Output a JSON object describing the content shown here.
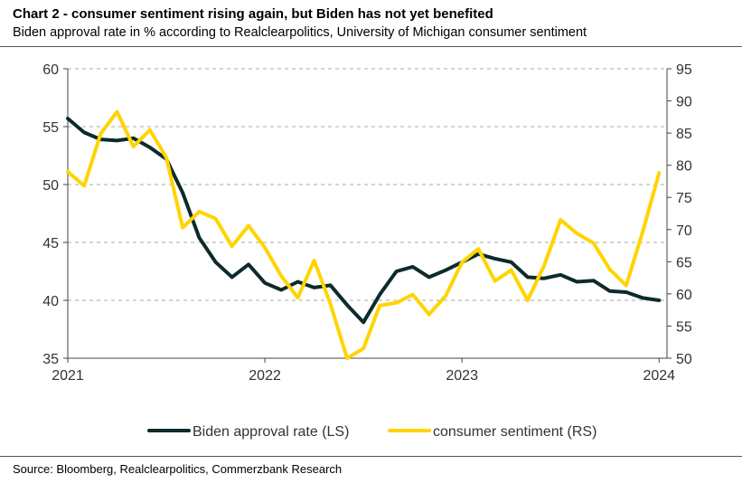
{
  "header": {
    "title": "Chart 2 - consumer sentiment rising again, but Biden has not yet benefited",
    "subtitle": "Biden approval rate in % according to Realclearpolitics, University of Michigan consumer sentiment"
  },
  "footer": {
    "source": "Source: Bloomberg, Realclearpolitics, Commerzbank Research"
  },
  "chart_data": {
    "type": "line",
    "title": "Chart 2 - consumer sentiment rising again, but Biden has not yet benefited",
    "subtitle": "Biden approval rate in % according to Realclearpolitics, University of Michigan consumer sentiment",
    "x_ticks": [
      2021,
      2022,
      2023,
      2024
    ],
    "xlim": [
      2021.0,
      2024.04
    ],
    "left_axis": {
      "ylim": [
        35,
        60
      ],
      "ticks": [
        35,
        40,
        45,
        50,
        55,
        60
      ]
    },
    "right_axis": {
      "ylim": [
        50,
        95
      ],
      "ticks": [
        50,
        55,
        60,
        65,
        70,
        75,
        80,
        85,
        90,
        95
      ]
    },
    "grid": "horizontal dashed",
    "legend": "bottom",
    "colors": {
      "approval": "#0e2b2b",
      "sentiment": "#ffd400",
      "grid": "#aaaaaa",
      "axis": "#444444"
    },
    "series": [
      {
        "name": "Biden approval rate (LS)",
        "axis": "left",
        "x": [
          2021.0,
          2021.083,
          2021.167,
          2021.25,
          2021.333,
          2021.417,
          2021.5,
          2021.583,
          2021.667,
          2021.75,
          2021.833,
          2021.917,
          2022.0,
          2022.083,
          2022.167,
          2022.25,
          2022.333,
          2022.417,
          2022.5,
          2022.583,
          2022.667,
          2022.75,
          2022.833,
          2022.917,
          2023.0,
          2023.083,
          2023.167,
          2023.25,
          2023.333,
          2023.417,
          2023.5,
          2023.583,
          2023.667,
          2023.75,
          2023.833,
          2023.917,
          2024.0
        ],
        "values": [
          55.7,
          54.5,
          53.9,
          53.8,
          54.0,
          53.2,
          52.2,
          49.3,
          45.4,
          43.3,
          42.0,
          43.1,
          41.5,
          40.9,
          41.6,
          41.1,
          41.3,
          39.6,
          38.1,
          40.5,
          42.5,
          42.9,
          42.0,
          42.6,
          43.3,
          44.0,
          43.6,
          43.3,
          42.0,
          41.9,
          42.2,
          41.6,
          41.7,
          40.8,
          40.7,
          40.2,
          40.0
        ]
      },
      {
        "name": "consumer sentiment (RS)",
        "axis": "right",
        "x": [
          2021.0,
          2021.083,
          2021.167,
          2021.25,
          2021.333,
          2021.417,
          2021.5,
          2021.583,
          2021.667,
          2021.75,
          2021.833,
          2021.917,
          2022.0,
          2022.083,
          2022.167,
          2022.25,
          2022.333,
          2022.417,
          2022.5,
          2022.583,
          2022.667,
          2022.75,
          2022.833,
          2022.917,
          2023.0,
          2023.083,
          2023.167,
          2023.25,
          2023.333,
          2023.417,
          2023.5,
          2023.583,
          2023.667,
          2023.75,
          2023.833,
          2023.917,
          2024.0
        ],
        "values": [
          79.0,
          76.8,
          84.9,
          88.3,
          82.9,
          85.5,
          81.2,
          70.3,
          72.8,
          71.7,
          67.4,
          70.6,
          67.2,
          62.8,
          59.4,
          65.2,
          58.4,
          50.0,
          51.5,
          58.2,
          58.6,
          59.9,
          56.8,
          59.7,
          64.9,
          67.0,
          62.0,
          63.7,
          59.0,
          64.4,
          71.5,
          69.4,
          67.9,
          63.8,
          61.3,
          69.7,
          78.8
        ]
      }
    ]
  }
}
